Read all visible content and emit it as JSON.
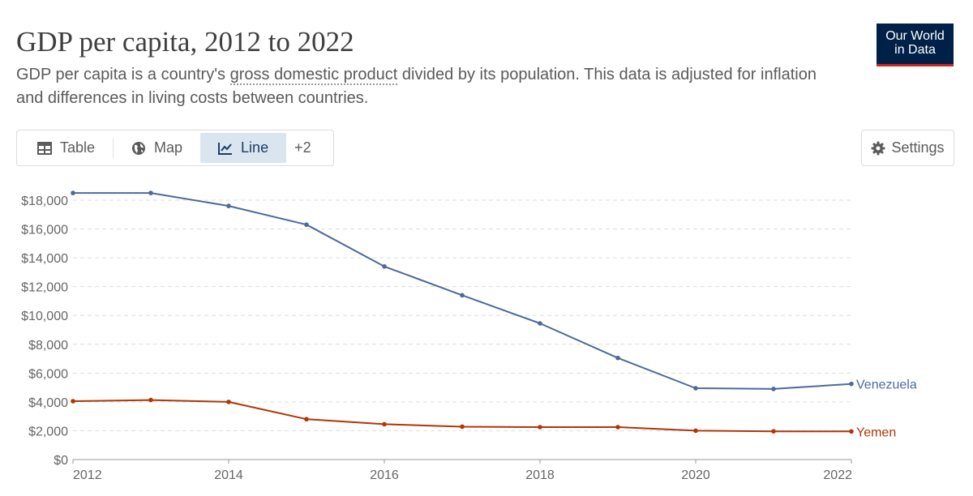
{
  "header": {
    "title": "GDP per capita, 2012 to 2022",
    "subtitle_before": "GDP per capita is a country's ",
    "subtitle_link": "gross domestic product",
    "subtitle_after": " divided by its population. This data is adjusted for inflation and differences in living costs between countries."
  },
  "logo": {
    "line1": "Our World",
    "line2": "in Data"
  },
  "tabs": [
    {
      "label": "Table",
      "icon": "table-icon"
    },
    {
      "label": "Map",
      "icon": "globe-icon"
    },
    {
      "label": "Line",
      "icon": "line-chart-icon",
      "active": true
    }
  ],
  "tabs_more": "+2",
  "settings_label": "Settings",
  "colors": {
    "venezuela": "#4c6a9c",
    "yemen": "#b13507",
    "grid": "#dddddd",
    "accent": "#002147"
  },
  "chart_data": {
    "type": "line",
    "x": [
      2012,
      2013,
      2014,
      2015,
      2016,
      2017,
      2018,
      2019,
      2020,
      2021,
      2022
    ],
    "series": [
      {
        "name": "Venezuela",
        "color": "#4c6a9c",
        "values": [
          18500,
          18500,
          17600,
          16300,
          13400,
          11400,
          9450,
          7050,
          4950,
          4900,
          5250
        ]
      },
      {
        "name": "Yemen",
        "color": "#b13507",
        "values": [
          4050,
          4130,
          4000,
          2800,
          2450,
          2280,
          2250,
          2250,
          2000,
          1960,
          1950
        ]
      }
    ],
    "x_ticks": [
      2012,
      2014,
      2016,
      2018,
      2020,
      2022
    ],
    "y_ticks": [
      0,
      2000,
      4000,
      6000,
      8000,
      10000,
      12000,
      14000,
      16000,
      18000
    ],
    "y_tick_labels": [
      "$0",
      "$2,000",
      "$4,000",
      "$6,000",
      "$8,000",
      "$10,000",
      "$12,000",
      "$14,000",
      "$16,000",
      "$18,000"
    ],
    "ylim": [
      0,
      18000
    ],
    "xlim": [
      2012,
      2022
    ],
    "grid": true,
    "grid_style": "dashed horizontal",
    "legend": "inline labels at line ends"
  }
}
